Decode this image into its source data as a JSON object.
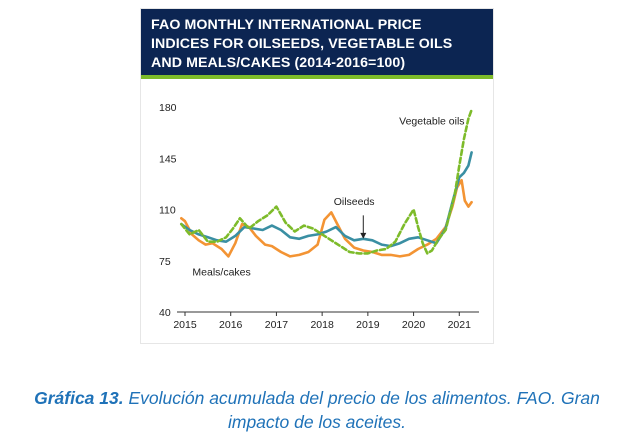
{
  "colors": {
    "banner_bg": "#0c2552",
    "banner_accent": "#7dbb2a",
    "vegetable_oils": "#7dbb2a",
    "oilseeds": "#3a8fa3",
    "meals_cakes": "#f39434",
    "caption": "#1f72b8"
  },
  "chart_data": {
    "type": "line",
    "title_lines": [
      "FAO MONTHLY INTERNATIONAL PRICE",
      "INDICES FOR OILSEEDS, VEGETABLE OILS",
      "AND MEALS/CAKES (2014-2016=100)"
    ],
    "xlabel": "",
    "ylabel": "",
    "ylim": [
      40,
      180
    ],
    "yticks": [
      "40",
      "75",
      "110",
      "145",
      "180"
    ],
    "xticks": [
      "2015",
      "2016",
      "2017",
      "2018",
      "2019",
      "2020",
      "2021"
    ],
    "xlim": [
      2015,
      2021.3
    ],
    "grid": false,
    "series": [
      {
        "name": "Vegetable oils",
        "style": "dashed",
        "x": [
          2014.92,
          2015.1,
          2015.3,
          2015.5,
          2015.7,
          2015.9,
          2016.05,
          2016.2,
          2016.4,
          2016.6,
          2016.8,
          2017.0,
          2017.2,
          2017.4,
          2017.6,
          2017.8,
          2018.0,
          2018.2,
          2018.4,
          2018.6,
          2018.8,
          2019.0,
          2019.2,
          2019.4,
          2019.6,
          2019.8,
          2020.0,
          2020.1,
          2020.2,
          2020.3,
          2020.4,
          2020.55,
          2020.7,
          2020.8,
          2020.9,
          2021.0,
          2021.1,
          2021.2,
          2021.27
        ],
        "values": [
          100,
          93,
          96,
          88,
          88,
          91,
          97,
          104,
          97,
          102,
          106,
          112,
          101,
          95,
          99,
          97,
          93,
          89,
          85,
          81,
          80,
          80,
          82,
          83,
          88,
          100,
          110,
          98,
          87,
          80,
          82,
          90,
          96,
          108,
          120,
          140,
          158,
          172,
          178
        ]
      },
      {
        "name": "Oilseeds",
        "style": "solid",
        "x": [
          2014.92,
          2015.1,
          2015.3,
          2015.5,
          2015.7,
          2015.9,
          2016.1,
          2016.3,
          2016.5,
          2016.7,
          2016.9,
          2017.1,
          2017.3,
          2017.5,
          2017.7,
          2017.9,
          2018.1,
          2018.3,
          2018.5,
          2018.7,
          2018.9,
          2019.1,
          2019.3,
          2019.5,
          2019.7,
          2019.9,
          2020.1,
          2020.3,
          2020.5,
          2020.7,
          2020.85,
          2021.0,
          2021.1,
          2021.2,
          2021.27
        ],
        "values": [
          100,
          96,
          93,
          91,
          89,
          88,
          92,
          98,
          97,
          96,
          99,
          96,
          91,
          90,
          92,
          93,
          95,
          98,
          92,
          89,
          90,
          89,
          86,
          85,
          87,
          90,
          91,
          89,
          87,
          97,
          115,
          132,
          135,
          140,
          149
        ]
      },
      {
        "name": "Meals/cakes",
        "style": "solid",
        "x": [
          2014.92,
          2015.0,
          2015.15,
          2015.3,
          2015.45,
          2015.6,
          2015.8,
          2015.95,
          2016.1,
          2016.25,
          2016.4,
          2016.55,
          2016.75,
          2016.9,
          2017.1,
          2017.3,
          2017.5,
          2017.7,
          2017.9,
          2018.05,
          2018.2,
          2018.35,
          2018.5,
          2018.7,
          2018.9,
          2019.1,
          2019.3,
          2019.5,
          2019.7,
          2019.9,
          2020.1,
          2020.3,
          2020.5,
          2020.7,
          2020.85,
          2020.95,
          2021.05,
          2021.12,
          2021.2,
          2021.27
        ],
        "values": [
          104,
          102,
          93,
          89,
          86,
          87,
          83,
          78,
          87,
          100,
          98,
          92,
          86,
          85,
          81,
          78,
          79,
          81,
          86,
          103,
          108,
          99,
          90,
          84,
          82,
          81,
          79,
          79,
          78,
          79,
          83,
          86,
          90,
          98,
          112,
          125,
          130,
          116,
          112,
          115
        ]
      }
    ],
    "annotations": [
      {
        "text": "Vegetable oils",
        "series": "Vegetable oils"
      },
      {
        "text": "Oilseeds",
        "series": "Oilseeds"
      },
      {
        "text": "Meals/cakes",
        "series": "Meals/cakes"
      }
    ]
  },
  "caption": {
    "label": "Gráfica 13.",
    "text_line1": " Evolución acumulada del precio de los alimentos. FAO. Gran",
    "text_line2": "impacto de los aceites."
  }
}
